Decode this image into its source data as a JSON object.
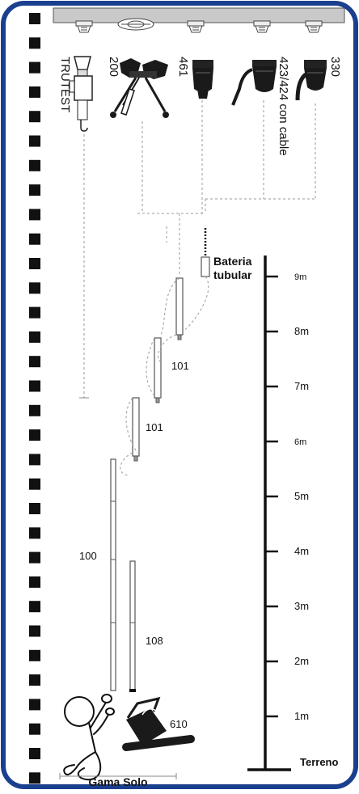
{
  "colors": {
    "frame_border": "#1a3f8f",
    "ink": "#111111",
    "dash": "#9a9a9a",
    "ceiling": "#c9c9c9"
  },
  "tools": {
    "trutest": "TRUTEST",
    "t200": "200",
    "t461": "461",
    "t423": "423/424 con cable",
    "t330": "330"
  },
  "labels": {
    "battery_line1": "Bateria",
    "battery_line2": "tubular",
    "rod_101_upper": "101",
    "rod_101_lower": "101",
    "rod_100": "100",
    "rod_108": "108",
    "bag_610": "610",
    "gama_solo": "Gama Solo"
  },
  "scale": {
    "marks": [
      {
        "label": "9m"
      },
      {
        "label": "8m"
      },
      {
        "label": "7m"
      },
      {
        "label": "6m"
      },
      {
        "label": "5m"
      },
      {
        "label": "4m"
      },
      {
        "label": "3m"
      },
      {
        "label": "2m"
      },
      {
        "label": "1m"
      }
    ],
    "ground_label": "Terreno"
  }
}
